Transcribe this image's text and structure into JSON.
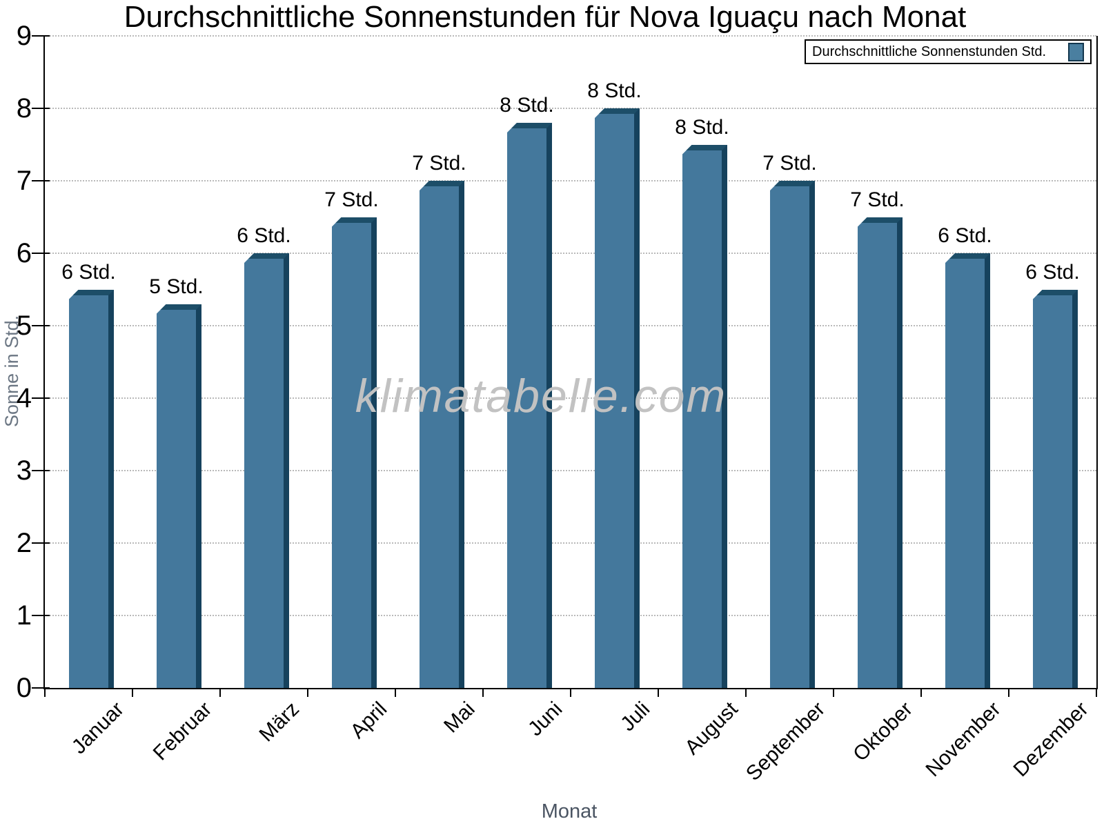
{
  "chart_data": {
    "type": "bar",
    "title": "Durchschnittliche Sonnenstunden für Nova Iguaçu nach Monat",
    "xlabel": "Monat",
    "ylabel": "Sonne in Std.",
    "ylim": [
      0,
      9
    ],
    "yticks": [
      0,
      1,
      2,
      3,
      4,
      5,
      6,
      7,
      8,
      9
    ],
    "grid": "horizontal-dotted",
    "legend_position": "top-right",
    "categories": [
      "Januar",
      "Februar",
      "März",
      "April",
      "Mai",
      "Juni",
      "Juli",
      "August",
      "September",
      "Oktober",
      "November",
      "Dezember"
    ],
    "series": [
      {
        "name": "Durchschnittliche Sonnenstunden Std.",
        "values": [
          5.5,
          5.3,
          6.0,
          6.5,
          7.0,
          7.8,
          8.0,
          7.5,
          7.0,
          6.5,
          6.0,
          5.5
        ],
        "bar_labels": [
          "6 Std.",
          "5 Std.",
          "6 Std.",
          "7 Std.",
          "7 Std.",
          "8 Std.",
          "8 Std.",
          "8 Std.",
          "7 Std.",
          "7 Std.",
          "6 Std.",
          "6 Std."
        ]
      }
    ],
    "watermark": "klimatabelle.com",
    "colors": {
      "bar_fill": "#44789c",
      "bar_edge_top": "#1d4e68",
      "bar_edge_right": "#16425d",
      "gridline": "#b9b9b9",
      "axis": "#000000",
      "y_axis_title": "#6b7683",
      "x_axis_title": "#4b5563",
      "watermark": "#c2c2c2",
      "legend_swatch": "#4a7fa0"
    }
  }
}
